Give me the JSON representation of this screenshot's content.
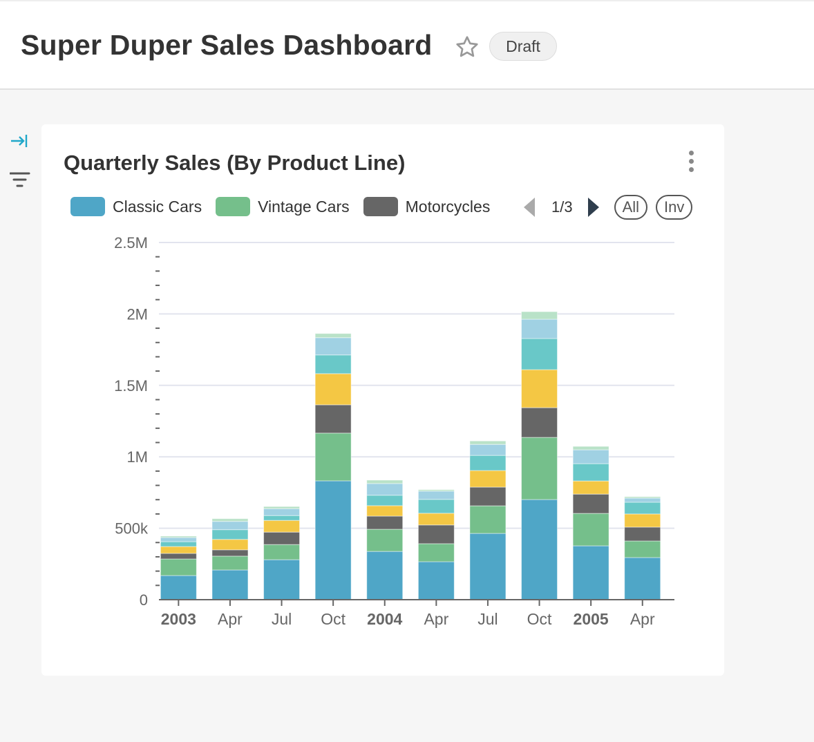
{
  "header": {
    "title": "Super Duper Sales Dashboard",
    "badge": "Draft",
    "star_icon": "star-outline-icon"
  },
  "sidebar": {
    "icons": [
      "expand-panel-icon",
      "filter-icon"
    ],
    "accent": "#20a7c9"
  },
  "chart_card": {
    "title": "Quarterly Sales (By Product Line)",
    "legend": {
      "items": [
        {
          "label": "Classic Cars",
          "color": "#4fa6c7"
        },
        {
          "label": "Vintage Cars",
          "color": "#75bf8b"
        },
        {
          "label": "Motorcycles",
          "color": "#666666"
        }
      ],
      "page": "1/3",
      "all_label": "All",
      "inv_label": "Inv"
    }
  },
  "chart_data": {
    "type": "bar",
    "stacked": true,
    "title": "Quarterly Sales (By Product Line)",
    "categories": [
      "2003",
      "Apr",
      "Jul",
      "Oct",
      "2004",
      "Apr",
      "Jul",
      "Oct",
      "2005",
      "Apr"
    ],
    "bold_categories": [
      "2003",
      "2004",
      "2005"
    ],
    "y_ticks": [
      "0",
      "500k",
      "1M",
      "1.5M",
      "2M",
      "2.5M"
    ],
    "ylim": [
      0,
      2500000
    ],
    "grid": true,
    "legend_placement": "top",
    "series": [
      {
        "name": "Classic Cars",
        "color": "#4fa6c7",
        "values": [
          169000,
          208000,
          280000,
          832000,
          338000,
          266000,
          464000,
          701000,
          377000,
          295000
        ]
      },
      {
        "name": "Vintage Cars",
        "color": "#75bf8b",
        "values": [
          116000,
          97000,
          106000,
          334000,
          155000,
          126000,
          193000,
          435000,
          227000,
          116000
        ]
      },
      {
        "name": "Motorcycles",
        "color": "#666666",
        "values": [
          39000,
          44000,
          87000,
          198000,
          92000,
          131000,
          131000,
          208000,
          135000,
          97000
        ]
      },
      {
        "color": "#f4c744",
        "values": [
          48000,
          73000,
          82000,
          218000,
          73000,
          82000,
          116000,
          266000,
          92000,
          92000
        ]
      },
      {
        "color": "#69c8c8",
        "values": [
          34000,
          68000,
          34000,
          131000,
          73000,
          97000,
          106000,
          218000,
          121000,
          82000
        ]
      },
      {
        "color": "#a0d1e3",
        "values": [
          29000,
          58000,
          48000,
          121000,
          82000,
          58000,
          77000,
          135000,
          97000,
          29000
        ]
      },
      {
        "color": "#b9e2c8",
        "values": [
          10000,
          19000,
          15000,
          29000,
          24000,
          10000,
          24000,
          53000,
          24000,
          10000
        ]
      }
    ]
  }
}
